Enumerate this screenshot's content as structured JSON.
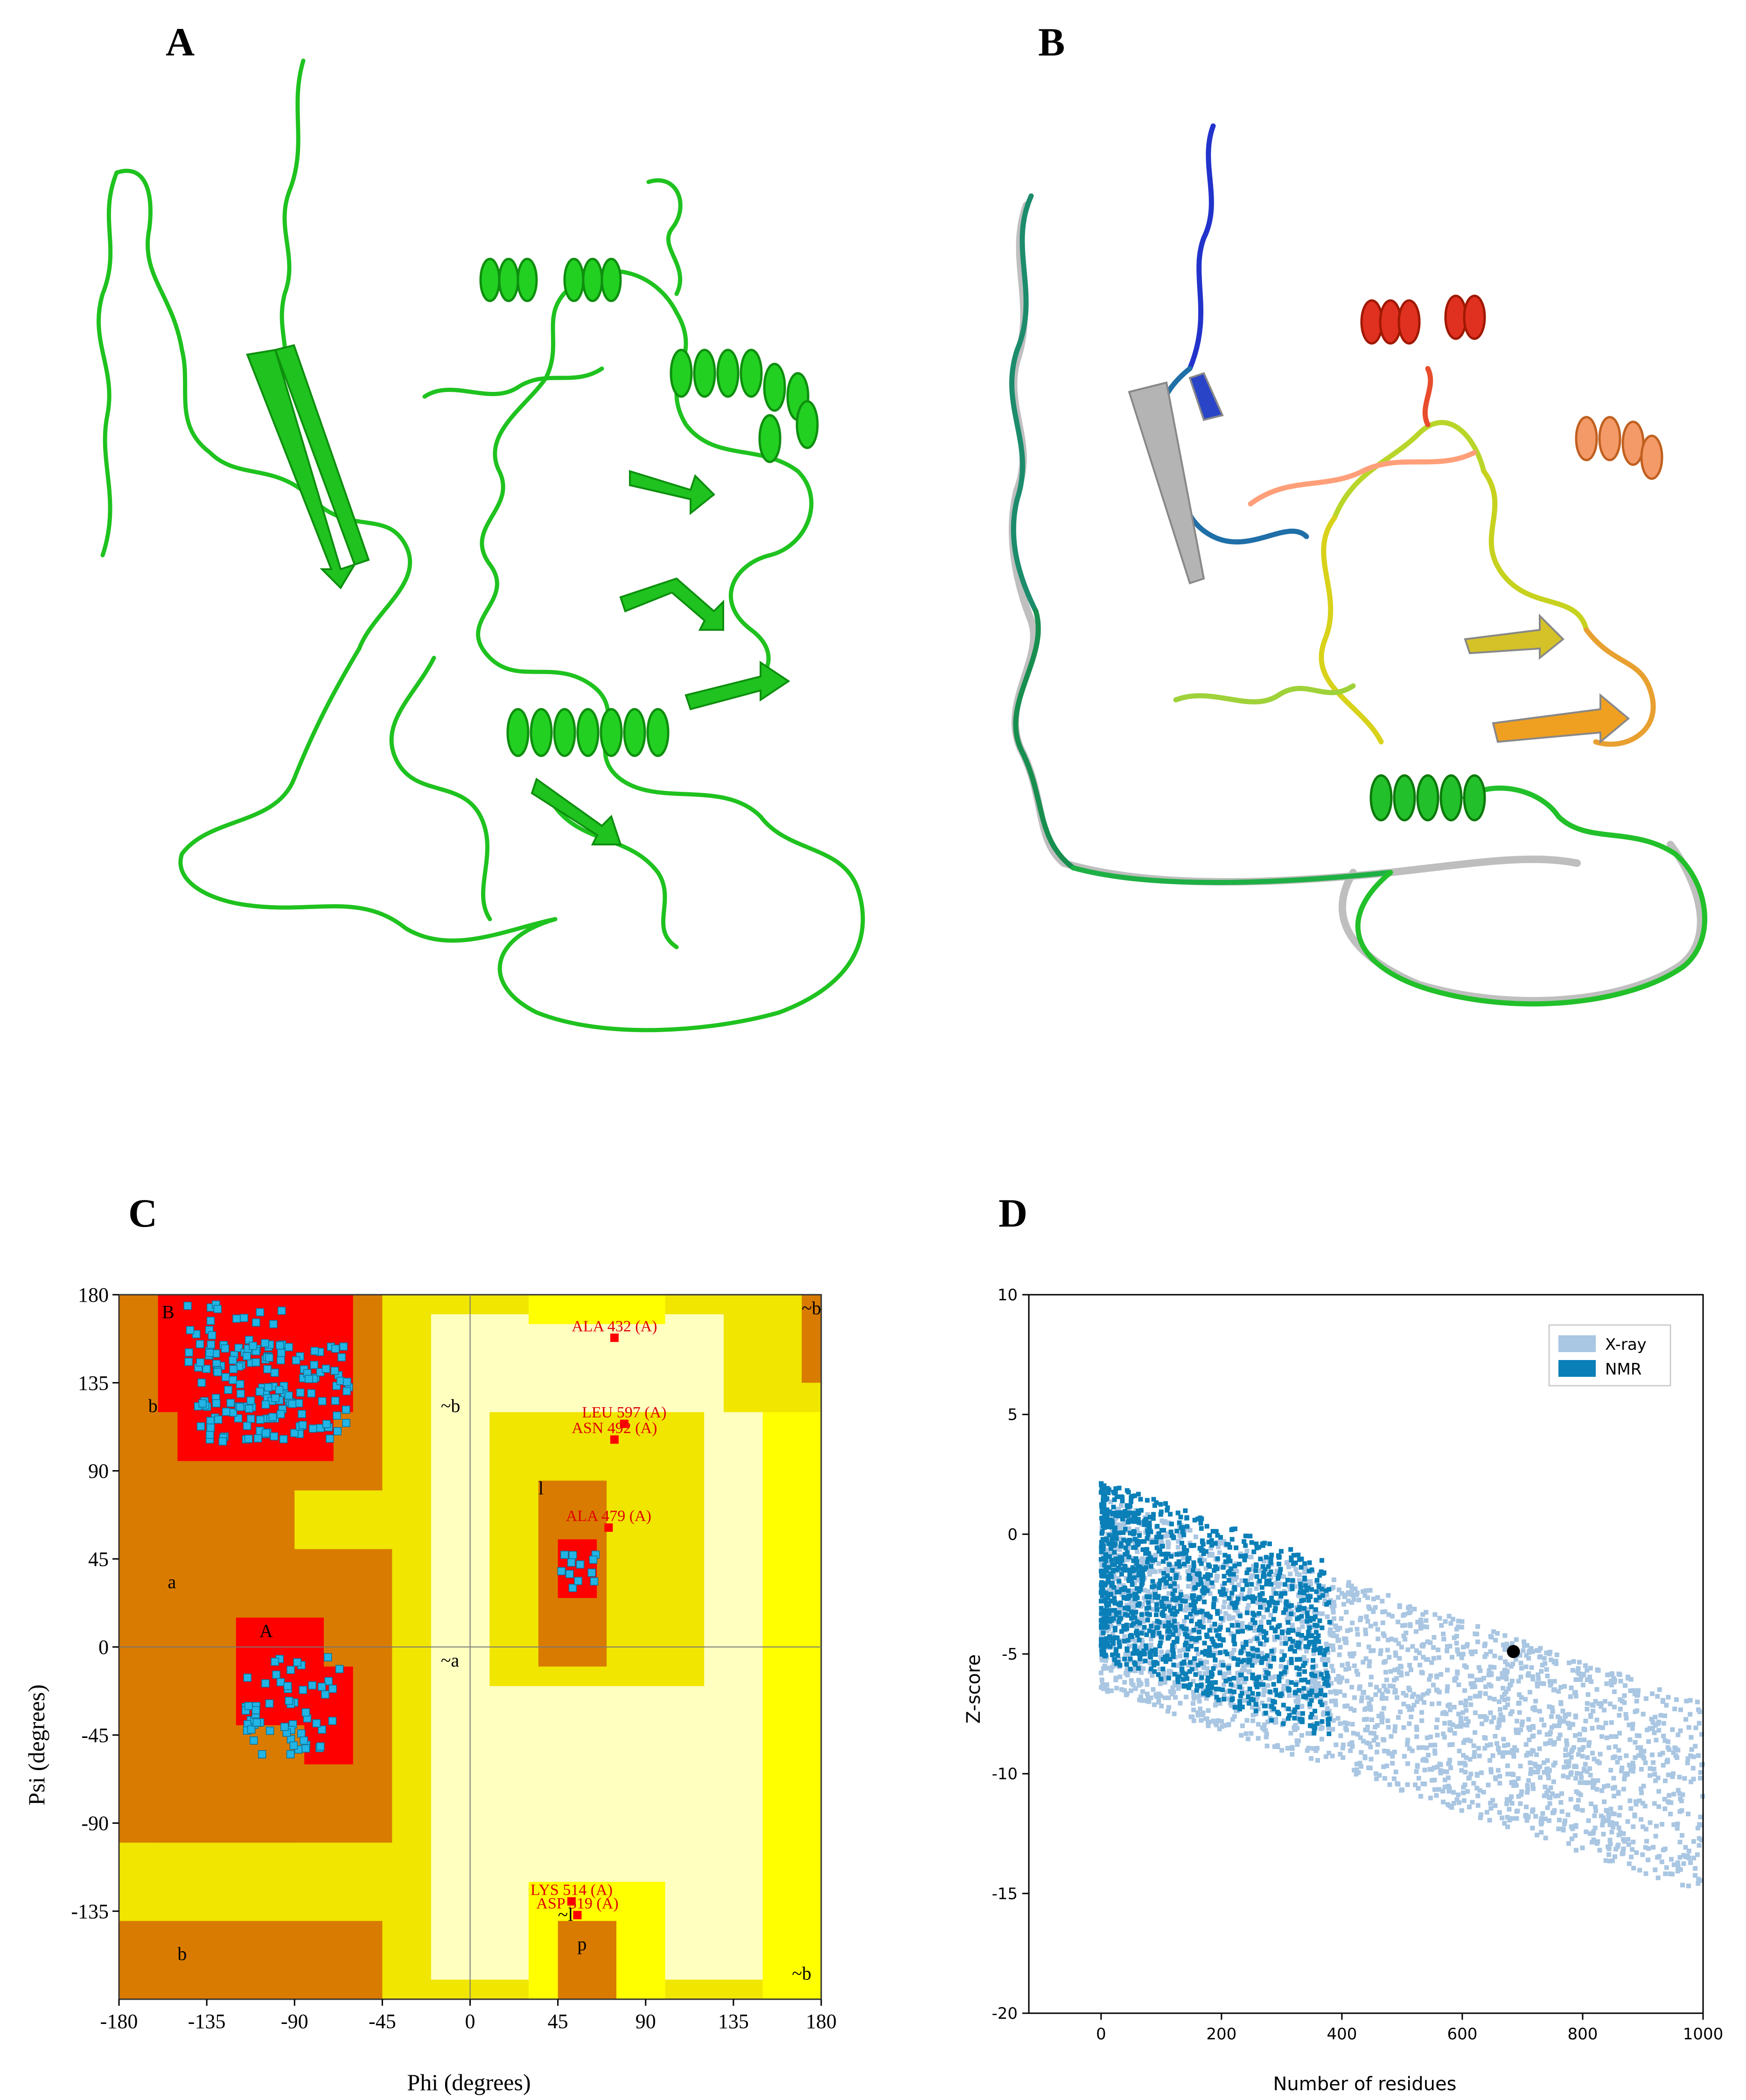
{
  "panels": {
    "a": {
      "letter": "A"
    },
    "b": {
      "letter": "B"
    },
    "c": {
      "letter": "C"
    },
    "d": {
      "letter": "D"
    }
  },
  "colors": {
    "green": "#1fc21f",
    "dark_green": "#0e8f0e",
    "rama_core": "#ff0000",
    "rama_allowed": "#d97b00",
    "rama_generous": "#f0e600",
    "rama_bright": "#ffff00",
    "rama_disallowed": "#ffffc0",
    "point": "#22b5e6",
    "xray": "#a9c6e2",
    "nmr": "#0a7fb8"
  },
  "chart_data": [
    {
      "type": "scatter",
      "panel": "C",
      "xlabel": "Phi (degrees)",
      "ylabel": "Psi (degrees)",
      "xlim": [
        -180,
        180
      ],
      "ylim": [
        -180,
        180
      ],
      "xticks": [
        "-180",
        "-135",
        "-90",
        "-45",
        "0",
        "45",
        "90",
        "135",
        "180"
      ],
      "yticks": [
        "180",
        "135",
        "90",
        "45",
        "0",
        "-45",
        "-90",
        "-135"
      ],
      "region_labels": [
        "B",
        "b",
        "a",
        "A",
        "l",
        "~b",
        "~a",
        "~l",
        "b",
        "p",
        "~b",
        "~b"
      ],
      "annotations": [
        {
          "text": "ALA 432 (A)",
          "x": 74,
          "y": 158
        },
        {
          "text": "LEU 597 (A)",
          "x": 79,
          "y": 114
        },
        {
          "text": "ASN 492 (A)",
          "x": 74,
          "y": 106
        },
        {
          "text": "ALA 479 (A)",
          "x": 71,
          "y": 61
        },
        {
          "text": "LYS 514 (A)",
          "x": 52,
          "y": -130
        },
        {
          "text": "ASP 519 (A)",
          "x": 55,
          "y": -137
        }
      ]
    },
    {
      "type": "scatter",
      "panel": "D",
      "xlabel": "Number of residues",
      "ylabel": "Z-score",
      "xlim": [
        -120,
        1000
      ],
      "ylim": [
        -20,
        10
      ],
      "xticks": [
        "0",
        "200",
        "400",
        "600",
        "800",
        "1000"
      ],
      "yticks": [
        "10",
        "5",
        "0",
        "-5",
        "-10",
        "-15",
        "-20"
      ],
      "legend": {
        "position": "top-right",
        "items": [
          "X-ray",
          "NMR"
        ]
      },
      "highlight_point": {
        "x": 685,
        "y": -4.9
      }
    }
  ]
}
